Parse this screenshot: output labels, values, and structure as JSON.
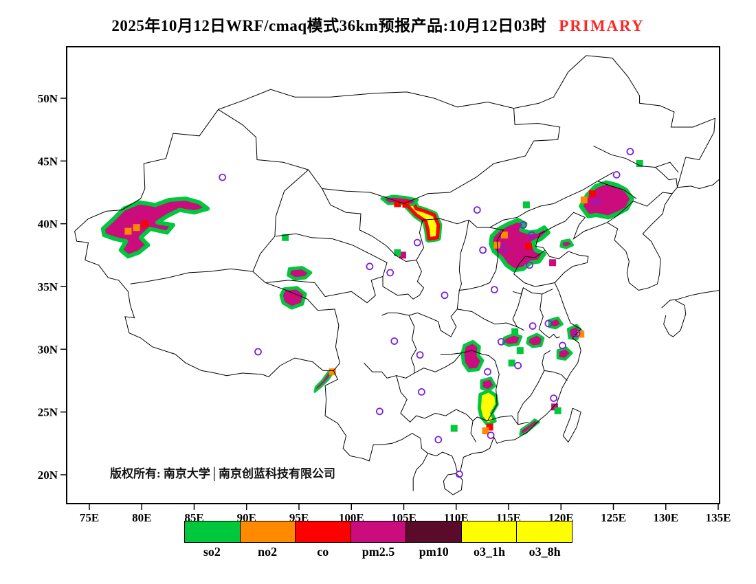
{
  "title": {
    "main": "2025年10月12日WRF/cmaq模式36km预报产品:10月12日03时",
    "tag": "PRIMARY",
    "tag_color": "#ff2626"
  },
  "copyright": "版权所有: 南京大学│南京创蓝科技有限公司",
  "axes": {
    "x": [
      {
        "label": "75E",
        "value": 75
      },
      {
        "label": "80E",
        "value": 80
      },
      {
        "label": "85E",
        "value": 85
      },
      {
        "label": "90E",
        "value": 90
      },
      {
        "label": "95E",
        "value": 95
      },
      {
        "label": "100E",
        "value": 100
      },
      {
        "label": "105E",
        "value": 105
      },
      {
        "label": "110E",
        "value": 110
      },
      {
        "label": "115E",
        "value": 115
      },
      {
        "label": "120E",
        "value": 120
      },
      {
        "label": "125E",
        "value": 125
      },
      {
        "label": "130E",
        "value": 130
      },
      {
        "label": "135E",
        "value": 135
      }
    ],
    "y": [
      {
        "label": "20N",
        "value": 20
      },
      {
        "label": "25N",
        "value": 25
      },
      {
        "label": "30N",
        "value": 30
      },
      {
        "label": "35N",
        "value": 35
      },
      {
        "label": "40N",
        "value": 40
      },
      {
        "label": "45N",
        "value": 45
      },
      {
        "label": "50N",
        "value": 50
      }
    ]
  },
  "legend": {
    "items": [
      {
        "label": "so2",
        "color": "#00c83c"
      },
      {
        "label": "no2",
        "color": "#ff8a00"
      },
      {
        "label": "co",
        "color": "#fe0000"
      },
      {
        "label": "pm2.5",
        "color": "#cb0c7c"
      },
      {
        "label": "pm10",
        "color": "#5a0b2a"
      },
      {
        "label": "o3_1h",
        "color": "#ffff00"
      },
      {
        "label": "o3_8h",
        "color": "#ffff00"
      }
    ]
  },
  "chart_data": {
    "type": "map-forecast",
    "model": "WRF/cmaq",
    "resolution_km": 36,
    "lon_range": [
      75,
      135
    ],
    "lat_range": [
      20,
      50
    ],
    "city_marker_color": "#7a22dd",
    "regions": [
      {
        "name": "xinjiang-west",
        "pollutant": "pm2.5",
        "edge": "so2",
        "edge_width": 6,
        "points": [
          [
            76.3,
            39.6
          ],
          [
            77.2,
            40.3
          ],
          [
            78.3,
            41.2
          ],
          [
            79.8,
            41.7
          ],
          [
            81.3,
            41.5
          ],
          [
            82.6,
            41.9
          ],
          [
            84.2,
            42.0
          ],
          [
            85.5,
            41.7
          ],
          [
            86.3,
            41.2
          ],
          [
            85.0,
            40.9
          ],
          [
            83.6,
            41.1
          ],
          [
            82.4,
            40.6
          ],
          [
            81.5,
            40.1
          ],
          [
            83.0,
            39.9
          ],
          [
            82.4,
            39.3
          ],
          [
            80.8,
            39.6
          ],
          [
            79.9,
            38.9
          ],
          [
            80.6,
            38.3
          ],
          [
            79.7,
            37.7
          ],
          [
            78.7,
            37.4
          ],
          [
            78.0,
            37.9
          ],
          [
            78.5,
            38.6
          ],
          [
            77.4,
            38.8
          ],
          [
            76.4,
            39.1
          ]
        ]
      },
      {
        "name": "qinghai-north",
        "pollutant": "pm2.5",
        "edge": "so2",
        "edge_width": 5,
        "points": [
          [
            94.1,
            36.4
          ],
          [
            95.3,
            36.5
          ],
          [
            96.1,
            36.1
          ],
          [
            95.6,
            35.7
          ],
          [
            94.6,
            35.6
          ],
          [
            94.0,
            35.9
          ]
        ]
      },
      {
        "name": "qinghai-south",
        "pollutant": "pm2.5",
        "edge": "so2",
        "edge_width": 5,
        "points": [
          [
            93.6,
            34.8
          ],
          [
            94.8,
            34.9
          ],
          [
            95.6,
            34.4
          ],
          [
            95.3,
            33.6
          ],
          [
            94.3,
            33.3
          ],
          [
            93.5,
            33.7
          ],
          [
            93.3,
            34.3
          ]
        ]
      },
      {
        "name": "hetao-ozone",
        "pollutant": "o3_1h",
        "edge": "co",
        "edge_width": 5,
        "edge2": "so2",
        "points": [
          [
            107.4,
            38.8
          ],
          [
            108.2,
            38.9
          ],
          [
            108.3,
            39.9
          ],
          [
            107.9,
            40.7
          ],
          [
            107.0,
            41.0
          ],
          [
            106.2,
            41.2
          ],
          [
            105.9,
            41.7
          ],
          [
            105.4,
            41.4
          ],
          [
            106.2,
            40.7
          ],
          [
            107.1,
            40.2
          ],
          [
            107.3,
            39.5
          ]
        ]
      },
      {
        "name": "alxa-streak",
        "pollutant": "pm2.5",
        "edge": "so2",
        "edge_width": 4,
        "points": [
          [
            102.9,
            42.0
          ],
          [
            104.0,
            42.2
          ],
          [
            105.2,
            42.1
          ],
          [
            106.3,
            41.9
          ],
          [
            105.9,
            41.5
          ],
          [
            104.6,
            41.6
          ],
          [
            103.5,
            41.6
          ]
        ]
      },
      {
        "name": "north-china-plain",
        "pollutant": "pm2.5",
        "edge": "so2",
        "edge_width": 6,
        "points": [
          [
            113.4,
            39.0
          ],
          [
            114.1,
            39.6
          ],
          [
            115.0,
            40.0
          ],
          [
            115.9,
            40.3
          ],
          [
            116.6,
            40.0
          ],
          [
            116.2,
            39.5
          ],
          [
            117.0,
            39.3
          ],
          [
            117.8,
            39.4
          ],
          [
            118.4,
            39.7
          ],
          [
            118.8,
            39.3
          ],
          [
            118.1,
            38.8
          ],
          [
            117.3,
            38.5
          ],
          [
            117.6,
            37.9
          ],
          [
            118.4,
            37.6
          ],
          [
            117.9,
            37.0
          ],
          [
            117.1,
            36.9
          ],
          [
            116.4,
            36.4
          ],
          [
            115.5,
            36.3
          ],
          [
            114.8,
            36.7
          ],
          [
            114.3,
            37.3
          ],
          [
            113.6,
            37.8
          ],
          [
            113.3,
            38.4
          ]
        ]
      },
      {
        "name": "shandong-coast",
        "pollutant": "pm2.5",
        "edge": "so2",
        "edge_width": 4,
        "points": [
          [
            120.1,
            38.6
          ],
          [
            120.8,
            38.7
          ],
          [
            121.1,
            38.3
          ],
          [
            120.5,
            38.1
          ],
          [
            120.0,
            38.2
          ]
        ]
      },
      {
        "name": "northeast",
        "pollutant": "pm2.5",
        "edge": "so2",
        "edge_width": 6,
        "points": [
          [
            121.9,
            41.4
          ],
          [
            122.5,
            42.3
          ],
          [
            123.3,
            43.0
          ],
          [
            124.3,
            43.3
          ],
          [
            125.3,
            43.1
          ],
          [
            126.2,
            42.7
          ],
          [
            126.8,
            42.0
          ],
          [
            126.3,
            41.2
          ],
          [
            125.4,
            40.8
          ],
          [
            124.5,
            40.5
          ],
          [
            123.4,
            40.7
          ],
          [
            122.6,
            40.6
          ]
        ]
      },
      {
        "name": "hunan-north",
        "pollutant": "pm2.5",
        "edge": "so2",
        "edge_width": 5,
        "points": [
          [
            110.8,
            30.3
          ],
          [
            111.6,
            30.6
          ],
          [
            112.2,
            30.2
          ],
          [
            112.1,
            29.5
          ],
          [
            112.5,
            29.1
          ],
          [
            112.1,
            28.4
          ],
          [
            111.2,
            28.3
          ],
          [
            110.7,
            28.9
          ],
          [
            110.6,
            29.7
          ]
        ]
      },
      {
        "name": "guangdong-ozone",
        "pollutant": "o3_1h",
        "edge": "so2",
        "edge_width": 5,
        "points": [
          [
            112.3,
            26.4
          ],
          [
            113.1,
            26.7
          ],
          [
            113.8,
            26.3
          ],
          [
            113.9,
            25.6
          ],
          [
            113.4,
            24.9
          ],
          [
            113.7,
            24.3
          ],
          [
            113.0,
            24.0
          ],
          [
            112.4,
            24.6
          ],
          [
            112.2,
            25.3
          ]
        ]
      },
      {
        "name": "hengyang",
        "pollutant": "pm2.5",
        "edge": "so2",
        "edge_width": 4,
        "points": [
          [
            112.4,
            27.5
          ],
          [
            113.3,
            27.7
          ],
          [
            113.7,
            27.1
          ],
          [
            113.1,
            26.7
          ],
          [
            112.4,
            26.9
          ]
        ]
      },
      {
        "name": "hubei-east",
        "pollutant": "pm2.5",
        "edge": "so2",
        "edge_width": 4,
        "points": [
          [
            114.6,
            30.9
          ],
          [
            115.5,
            31.2
          ],
          [
            116.2,
            31.0
          ],
          [
            115.9,
            30.4
          ],
          [
            115.0,
            30.3
          ],
          [
            114.5,
            30.5
          ]
        ]
      },
      {
        "name": "anhui-south",
        "pollutant": "pm2.5",
        "edge": "so2",
        "edge_width": 4,
        "points": [
          [
            116.9,
            30.9
          ],
          [
            117.7,
            31.2
          ],
          [
            118.3,
            30.9
          ],
          [
            118.1,
            30.3
          ],
          [
            117.3,
            30.2
          ],
          [
            116.8,
            30.5
          ]
        ]
      },
      {
        "name": "nanjing",
        "pollutant": "pm2.5",
        "edge": "so2",
        "edge_width": 4,
        "points": [
          [
            118.9,
            32.3
          ],
          [
            119.7,
            32.5
          ],
          [
            120.1,
            32.0
          ],
          [
            119.5,
            31.7
          ],
          [
            118.9,
            31.8
          ]
        ]
      },
      {
        "name": "shanghai-coastal",
        "pollutant": "pm2.5",
        "edge": "so2",
        "edge_width": 4,
        "points": [
          [
            120.7,
            31.6
          ],
          [
            121.5,
            31.9
          ],
          [
            122.0,
            31.4
          ],
          [
            121.5,
            30.8
          ],
          [
            120.8,
            30.9
          ]
        ]
      },
      {
        "name": "zhejiang",
        "pollutant": "pm2.5",
        "edge": "so2",
        "edge_width": 4,
        "points": [
          [
            119.7,
            29.9
          ],
          [
            120.5,
            30.1
          ],
          [
            121.0,
            29.7
          ],
          [
            120.4,
            29.2
          ],
          [
            119.7,
            29.3
          ]
        ]
      },
      {
        "name": "yunnan-west-streak",
        "pollutant": "pm2.5",
        "edge": "so2",
        "edge_width": 3,
        "points": [
          [
            96.5,
            26.6
          ],
          [
            97.1,
            27.0
          ],
          [
            97.8,
            27.6
          ],
          [
            98.2,
            28.1
          ],
          [
            97.8,
            28.2
          ],
          [
            97.2,
            27.5
          ],
          [
            96.6,
            27.0
          ]
        ]
      },
      {
        "name": "guangdong-east",
        "pollutant": "pm2.5",
        "edge": "so2",
        "edge_width": 3,
        "points": [
          [
            116.2,
            23.6
          ],
          [
            116.9,
            24.0
          ],
          [
            117.5,
            24.4
          ],
          [
            117.9,
            24.2
          ],
          [
            117.3,
            23.8
          ],
          [
            116.6,
            23.3
          ],
          [
            116.1,
            23.2
          ]
        ]
      }
    ],
    "cells": [
      {
        "pollutant": "so2",
        "lon": 93.7,
        "lat": 38.9
      },
      {
        "pollutant": "no2",
        "lon": 78.7,
        "lat": 39.4
      },
      {
        "pollutant": "no2",
        "lon": 79.5,
        "lat": 39.7
      },
      {
        "pollutant": "co",
        "lon": 80.3,
        "lat": 40.0
      },
      {
        "pollutant": "co",
        "lon": 104.4,
        "lat": 41.6
      },
      {
        "pollutant": "co",
        "lon": 105.2,
        "lat": 41.55
      },
      {
        "pollutant": "pm2.5",
        "lon": 104.9,
        "lat": 37.5
      },
      {
        "pollutant": "so2",
        "lon": 104.4,
        "lat": 37.7
      },
      {
        "pollutant": "no2",
        "lon": 113.9,
        "lat": 38.3
      },
      {
        "pollutant": "no2",
        "lon": 114.6,
        "lat": 39.1
      },
      {
        "pollutant": "co",
        "lon": 116.9,
        "lat": 38.2
      },
      {
        "pollutant": "so2",
        "lon": 116.7,
        "lat": 41.5
      },
      {
        "pollutant": "pm2.5",
        "lon": 119.2,
        "lat": 36.9
      },
      {
        "pollutant": "so2",
        "lon": 127.5,
        "lat": 44.8
      },
      {
        "pollutant": "no2",
        "lon": 122.2,
        "lat": 41.9
      },
      {
        "pollutant": "co",
        "lon": 123.0,
        "lat": 42.4
      },
      {
        "pollutant": "so2",
        "lon": 115.6,
        "lat": 31.4
      },
      {
        "pollutant": "so2",
        "lon": 116.1,
        "lat": 29.9
      },
      {
        "pollutant": "so2",
        "lon": 115.3,
        "lat": 28.9
      },
      {
        "pollutant": "no2",
        "lon": 121.9,
        "lat": 31.2
      },
      {
        "pollutant": "co",
        "lon": 113.2,
        "lat": 23.8
      },
      {
        "pollutant": "no2",
        "lon": 112.8,
        "lat": 23.5
      },
      {
        "pollutant": "pm2.5",
        "lon": 119.4,
        "lat": 25.4
      },
      {
        "pollutant": "so2",
        "lon": 119.7,
        "lat": 25.1
      },
      {
        "pollutant": "no2",
        "lon": 98.2,
        "lat": 28.2
      },
      {
        "pollutant": "so2",
        "lon": 109.8,
        "lat": 23.7
      }
    ],
    "cities": [
      [
        87.7,
        43.7
      ],
      [
        91.1,
        29.8
      ],
      [
        101.75,
        36.6
      ],
      [
        103.7,
        36.1
      ],
      [
        106.3,
        38.5
      ],
      [
        108.9,
        34.3
      ],
      [
        112.0,
        41.1
      ],
      [
        116.4,
        39.9
      ],
      [
        117.2,
        39.1
      ],
      [
        112.55,
        37.9
      ],
      [
        114.5,
        38.05
      ],
      [
        117.0,
        36.7
      ],
      [
        113.65,
        34.75
      ],
      [
        123.4,
        41.8
      ],
      [
        125.3,
        43.9
      ],
      [
        126.6,
        45.75
      ],
      [
        118.8,
        32.05
      ],
      [
        117.3,
        31.85
      ],
      [
        121.5,
        31.25
      ],
      [
        120.15,
        30.3
      ],
      [
        114.3,
        30.6
      ],
      [
        113.0,
        28.2
      ],
      [
        115.9,
        28.7
      ],
      [
        119.3,
        26.1
      ],
      [
        104.1,
        30.65
      ],
      [
        106.55,
        29.55
      ],
      [
        106.7,
        26.6
      ],
      [
        102.7,
        25.05
      ],
      [
        113.3,
        23.15
      ],
      [
        108.3,
        22.8
      ],
      [
        110.3,
        20.05
      ]
    ]
  }
}
